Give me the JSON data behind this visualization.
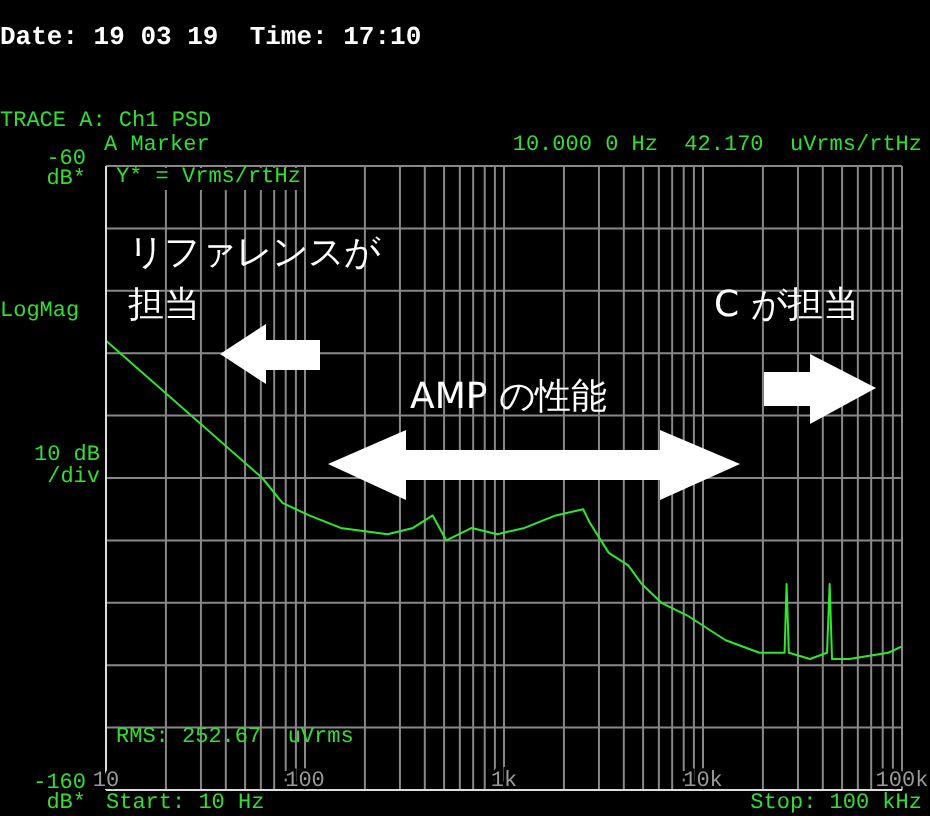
{
  "chart_data": {
    "type": "line",
    "title": "TRACE A: Ch1 PSD",
    "ylabel": "10 dB /div",
    "annotations": [
      "Date: 19 03 19  Time: 17:10",
      "A Marker",
      "10.000 0 Hz  42.170  uVrms/rtHz",
      "Y* = Vrms/rtHz",
      "LogMag",
      "RMS: 252.67  uVrms",
      "Start: 10 Hz",
      "Stop: 100 kHz",
      "リファレンスが担当",
      "C が担当",
      "AMP の性能"
    ],
    "series": [
      {
        "color": "#2ee82e",
        "x": [
          10,
          61,
          77,
          105,
          151,
          260,
          349,
          438,
          513,
          689,
          925,
          1268,
          1820,
          2500,
          2680,
          3360,
          4210,
          4930,
          6180,
          8300,
          10400,
          13000,
          19200,
          25700,
          26300,
          27000,
          34500,
          42000,
          43300,
          44500,
          54300,
          85300,
          100000
        ],
        "values": [
          -88,
          -110,
          -114,
          -116,
          -118,
          -119,
          -118,
          -116,
          -120,
          -118,
          -119,
          -118,
          -116,
          -115,
          -117,
          -122,
          -124,
          -127,
          -130,
          -132,
          -134,
          -136,
          -138,
          -138,
          -127,
          -138,
          -139,
          -138,
          -127,
          -139,
          -139,
          -138,
          -137
        ]
      }
    ],
    "xlim": [
      10,
      100000
    ],
    "xticks": [
      {
        "value": 10,
        "label": "10"
      },
      {
        "value": 20,
        "label": null
      },
      {
        "value": 30,
        "label": null
      },
      {
        "value": 40,
        "label": null
      },
      {
        "value": 50,
        "label": null
      },
      {
        "value": 60,
        "label": null
      },
      {
        "value": 70,
        "label": null
      },
      {
        "value": 80,
        "label": null
      },
      {
        "value": 90,
        "label": null
      },
      {
        "value": 100,
        "label": "100"
      },
      {
        "value": 200,
        "label": null
      },
      {
        "value": 300,
        "label": null
      },
      {
        "value": 400,
        "label": null
      },
      {
        "value": 500,
        "label": null
      },
      {
        "value": 600,
        "label": null
      },
      {
        "value": 700,
        "label": null
      },
      {
        "value": 800,
        "label": null
      },
      {
        "value": 900,
        "label": null
      },
      {
        "value": 1000,
        "label": "1k"
      },
      {
        "value": 2000,
        "label": null
      },
      {
        "value": 3000,
        "label": null
      },
      {
        "value": 4000,
        "label": null
      },
      {
        "value": 5000,
        "label": null
      },
      {
        "value": 6000,
        "label": null
      },
      {
        "value": 7000,
        "label": null
      },
      {
        "value": 8000,
        "label": null
      },
      {
        "value": 9000,
        "label": null
      },
      {
        "value": 10000,
        "label": "10k"
      },
      {
        "value": 20000,
        "label": null
      },
      {
        "value": 30000,
        "label": null
      },
      {
        "value": 40000,
        "label": null
      },
      {
        "value": 50000,
        "label": null
      },
      {
        "value": 60000,
        "label": null
      },
      {
        "value": 70000,
        "label": null
      },
      {
        "value": 80000,
        "label": null
      },
      {
        "value": 90000,
        "label": null
      },
      {
        "value": 100000,
        "label": "100k"
      }
    ],
    "ylim": [
      -160,
      -60
    ],
    "yticks": [
      {
        "value": -160,
        "label": "-160 dB*"
      },
      {
        "value": -150,
        "label": null
      },
      {
        "value": -140,
        "label": null
      },
      {
        "value": -130,
        "label": null
      },
      {
        "value": -120,
        "label": null
      },
      {
        "value": -110,
        "label": null
      },
      {
        "value": -100,
        "label": null
      },
      {
        "value": -90,
        "label": null
      },
      {
        "value": -80,
        "label": null
      },
      {
        "value": -70,
        "label": null
      },
      {
        "value": -60,
        "label": "-60 dB*"
      }
    ],
    "log": "x",
    "grid": true,
    "legend": false,
    "marker": "none",
    "line_style": "solid"
  }
}
